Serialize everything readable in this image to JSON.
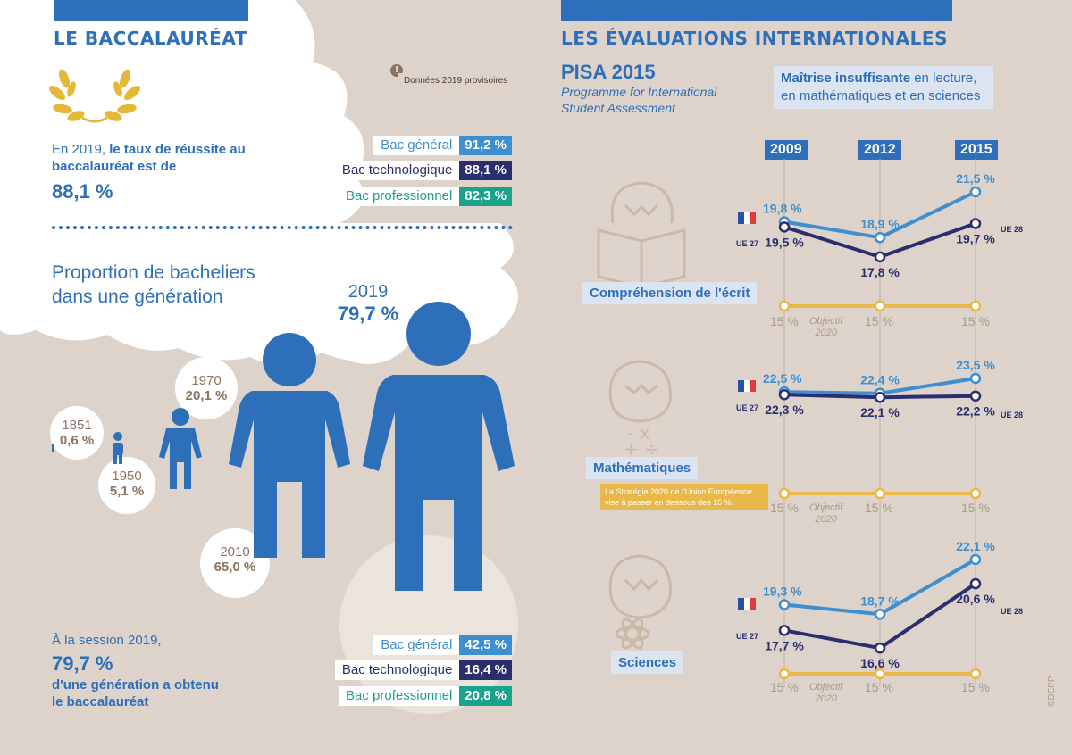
{
  "left": {
    "title": "LE BACCALAURÉAT",
    "note_icon": "!",
    "note": "Données 2019 provisoires",
    "intro_prefix": "En 2019, ",
    "intro_bold": "le taux de réussite au baccalauréat est de",
    "intro_value": "88,1 %",
    "success": [
      {
        "label": "Bac général",
        "value": "91,2 %"
      },
      {
        "label": "Bac technologique",
        "value": "88,1 %"
      },
      {
        "label": "Bac professionnel",
        "value": "82,3 %"
      }
    ],
    "proportion_title_1": "Proportion de bacheliers",
    "proportion_title_2": "dans une génération",
    "years": [
      {
        "year": "1851",
        "value": "0,6 %"
      },
      {
        "year": "1950",
        "value": "5,1 %"
      },
      {
        "year": "1970",
        "value": "20,1 %"
      },
      {
        "year": "2010",
        "value": "65,0 %"
      },
      {
        "year": "2019",
        "value": "79,7 %"
      }
    ],
    "session_line": "À la session 2019,",
    "session_value": "79,7 %",
    "session_text_1": "d'une génération a obtenu",
    "session_text_2": "le baccalauréat",
    "generation": [
      {
        "label": "Bac général",
        "value": "42,5 %"
      },
      {
        "label": "Bac technologique",
        "value": "16,4 %"
      },
      {
        "label": "Bac professionnel",
        "value": "20,8 %"
      }
    ]
  },
  "right": {
    "title": "LES ÉVALUATIONS INTERNATIONALES",
    "pisa": "PISA 2015",
    "pisa_sub_1": "Programme for International",
    "pisa_sub_2": "Student Assessment",
    "box_bold": "Maîtrise insuffisante",
    "box_rest_1": " en lecture,",
    "box_rest_2": "en mathématiques et en sciences",
    "years": [
      "2009",
      "2012",
      "2015"
    ],
    "ue27": "UE 27",
    "ue28": "UE 28",
    "objective_1": "Objectif",
    "objective_2": "2020",
    "target": "15 %",
    "strategy_1": "La Stratégie 2020 de l'Union Européenne",
    "strategy_2": "vise à passer en dessous des 15 %.",
    "credit": "©DEPP",
    "colors": {
      "france": "#3d8fd0",
      "eu": "#2a2e6e",
      "target": "#e8b84a"
    }
  },
  "chart_data": [
    {
      "type": "line",
      "title": "Compréhension de l'écrit",
      "x": [
        "2009",
        "2012",
        "2015"
      ],
      "series": [
        {
          "name": "France",
          "values": [
            19.8,
            18.9,
            21.5
          ]
        },
        {
          "name": "UE",
          "values": [
            19.5,
            17.8,
            19.7
          ]
        },
        {
          "name": "Objectif 2020",
          "values": [
            15,
            15,
            15
          ]
        }
      ],
      "labels": {
        "fr": [
          "19,8 %",
          "18,9 %",
          "21,5 %"
        ],
        "ue": [
          "19,5 %",
          "17,8 %",
          "19,7 %"
        ]
      }
    },
    {
      "type": "line",
      "title": "Mathématiques",
      "x": [
        "2009",
        "2012",
        "2015"
      ],
      "series": [
        {
          "name": "France",
          "values": [
            22.5,
            22.4,
            23.5
          ]
        },
        {
          "name": "UE",
          "values": [
            22.3,
            22.1,
            22.2
          ]
        },
        {
          "name": "Objectif 2020",
          "values": [
            15,
            15,
            15
          ]
        }
      ],
      "labels": {
        "fr": [
          "22,5 %",
          "22,4 %",
          "23,5 %"
        ],
        "ue": [
          "22,3 %",
          "22,1 %",
          "22,2 %"
        ]
      }
    },
    {
      "type": "line",
      "title": "Sciences",
      "x": [
        "2009",
        "2012",
        "2015"
      ],
      "series": [
        {
          "name": "France",
          "values": [
            19.3,
            18.7,
            22.1
          ]
        },
        {
          "name": "UE",
          "values": [
            17.7,
            16.6,
            20.6
          ]
        },
        {
          "name": "Objectif 2020",
          "values": [
            15,
            15,
            15
          ]
        }
      ],
      "labels": {
        "fr": [
          "19,3 %",
          "18,7 %",
          "22,1 %"
        ],
        "ue": [
          "17,7 %",
          "16,6 %",
          "20,6 %"
        ]
      }
    }
  ]
}
